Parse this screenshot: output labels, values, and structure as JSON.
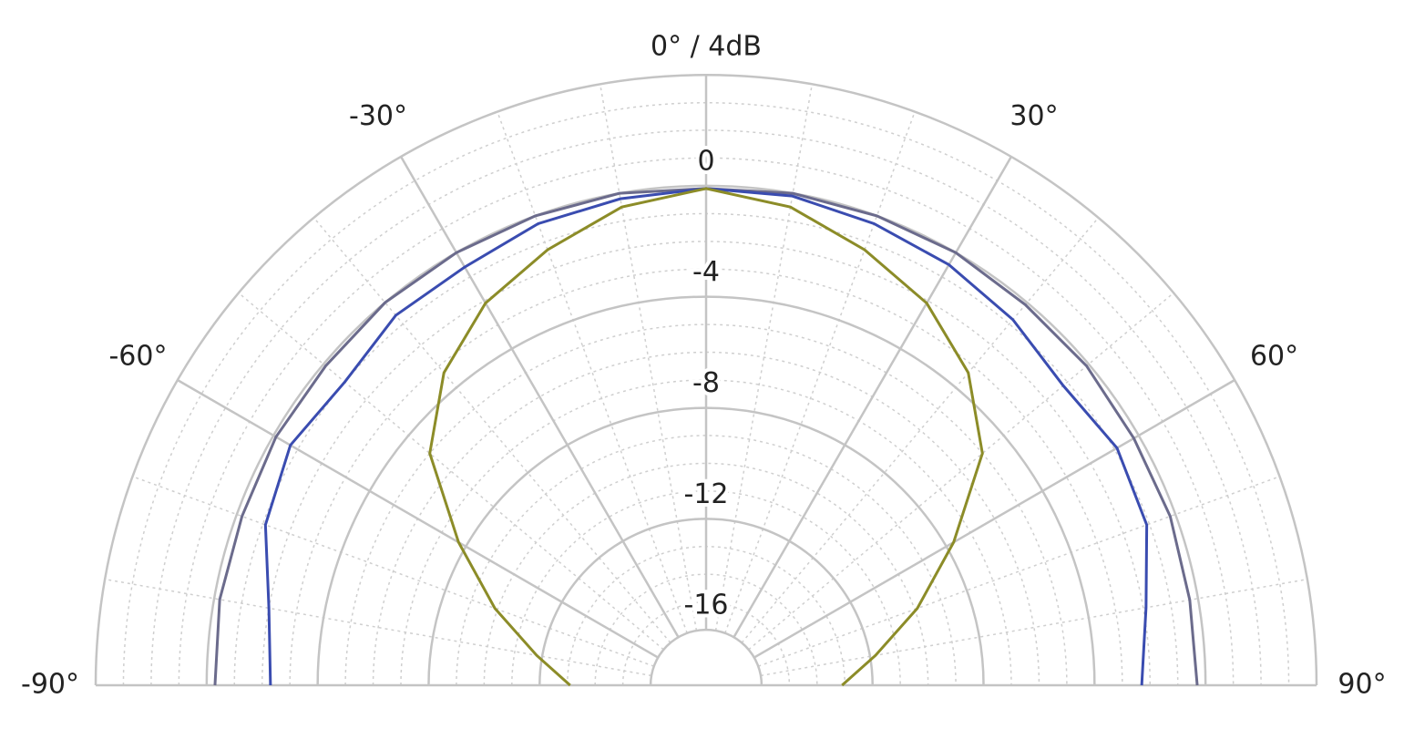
{
  "chart_data": {
    "type": "polar",
    "x": [
      -90,
      -80,
      -70,
      -60,
      -50,
      -40,
      -30,
      -20,
      -10,
      0,
      10,
      20,
      30,
      40,
      50,
      60,
      70,
      80,
      90
    ],
    "series": [
      {
        "color": "#6b6b8c",
        "values": [
          -0.3,
          -0.2,
          -0.2,
          -0.1,
          -0.1,
          0,
          0,
          0,
          0,
          -0.1,
          0,
          0,
          0,
          -0.1,
          -0.1,
          -0.2,
          -0.2,
          -0.3,
          -0.3
        ]
      },
      {
        "color": "#3a4cb0",
        "values": [
          -2.3,
          -2.0,
          -1.1,
          -0.7,
          -1.0,
          -0.6,
          -0.6,
          -0.3,
          -0.2,
          -0.1,
          -0.1,
          -0.3,
          -0.5,
          -0.8,
          -1.2,
          -0.9,
          -1.1,
          -1.9,
          -2.3
        ]
      },
      {
        "color": "#8c8c28",
        "values": [
          -13.1,
          -11.8,
          -9.9,
          -7.7,
          -5.0,
          -3.3,
          -2.1,
          -1.3,
          -0.5,
          -0.1,
          -0.5,
          -1.3,
          -2.1,
          -3.3,
          -5.0,
          -7.7,
          -9.9,
          -11.8,
          -13.1
        ]
      }
    ],
    "xlim": [
      -90,
      90
    ],
    "xticks": [
      {
        "value": -90,
        "label": "-90°"
      },
      {
        "value": -60,
        "label": "-60°"
      },
      {
        "value": -30,
        "label": "-30°"
      },
      {
        "value": 0,
        "label": "0° / 4dB"
      },
      {
        "value": 30,
        "label": "30°"
      },
      {
        "value": 60,
        "label": "60°"
      },
      {
        "value": 90,
        "label": "90°"
      }
    ],
    "ylim": [
      -18,
      4
    ],
    "yticks": [
      -16,
      -12,
      -8,
      -4,
      0
    ],
    "grid": true
  }
}
